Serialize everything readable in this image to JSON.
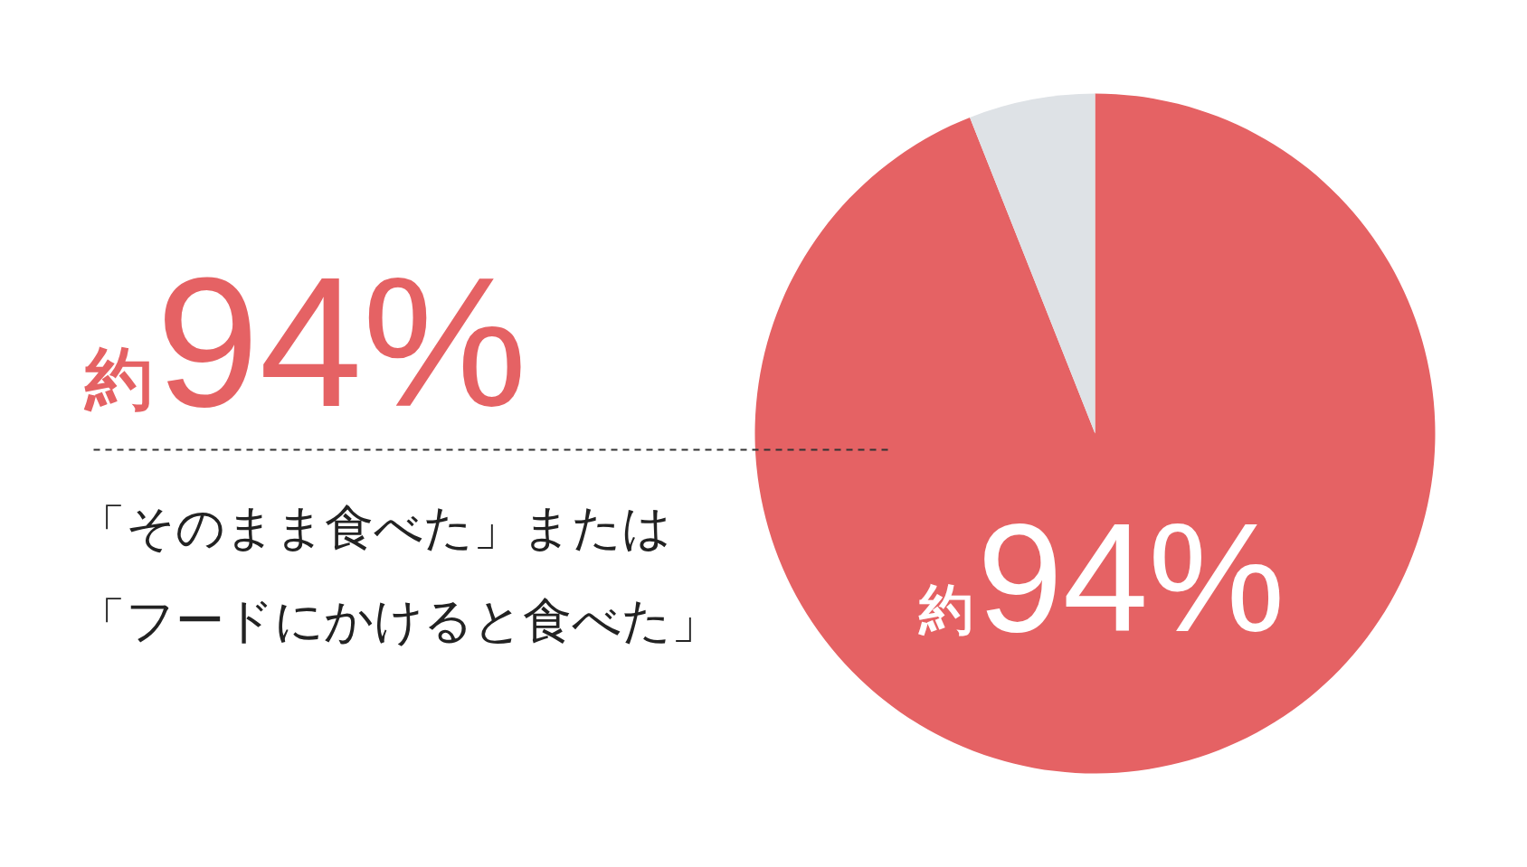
{
  "chart_data": {
    "type": "pie",
    "categories": [
      "「そのまま食べた」または「フードにかけると食べた」",
      null
    ],
    "values": [
      94,
      6
    ],
    "colors": [
      "#e56264",
      "#dee2e6"
    ],
    "value_labels": [
      "約94%",
      null
    ],
    "annotations": [
      "約94%"
    ]
  }
}
